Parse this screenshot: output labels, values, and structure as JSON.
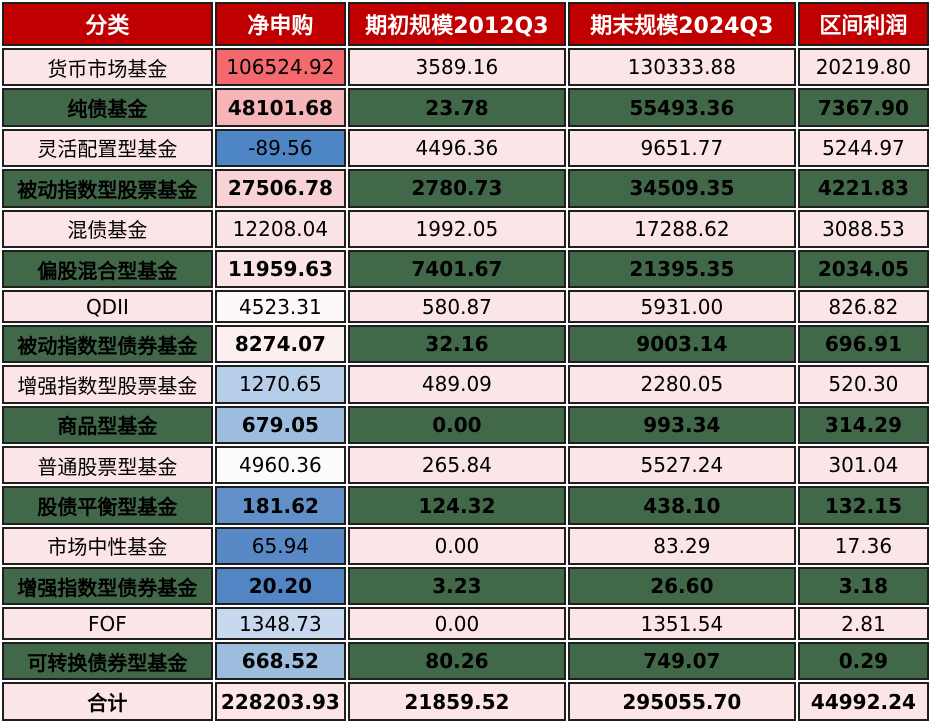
{
  "table": {
    "columns": [
      "分类",
      "净申购",
      "期初规模2012Q3",
      "期末规模2024Q3",
      "区间利润"
    ],
    "rows": [
      {
        "category": "货币市场基金",
        "net_subscription": "106524.92",
        "start_scale": "3589.16",
        "end_scale": "130333.88",
        "profit": "20219.80",
        "theme": "pink",
        "net_bg": "#F4696E"
      },
      {
        "category": "纯债基金",
        "net_subscription": "48101.68",
        "start_scale": "23.78",
        "end_scale": "55493.36",
        "profit": "7367.90",
        "theme": "green",
        "net_bg": "#F5B5B9"
      },
      {
        "category": "灵活配置型基金",
        "net_subscription": "-89.56",
        "start_scale": "4496.36",
        "end_scale": "9651.77",
        "profit": "5244.97",
        "theme": "pink",
        "net_bg": "#4E85C5"
      },
      {
        "category": "被动指数型股票基金",
        "net_subscription": "27506.78",
        "start_scale": "2780.73",
        "end_scale": "34509.35",
        "profit": "4221.83",
        "theme": "green",
        "net_bg": "#F8D2D4"
      },
      {
        "category": "混债基金",
        "net_subscription": "12208.04",
        "start_scale": "1992.05",
        "end_scale": "17288.62",
        "profit": "3088.53",
        "theme": "pink",
        "net_bg": "#FAE4E5"
      },
      {
        "category": "偏股混合型基金",
        "net_subscription": "11959.63",
        "start_scale": "7401.67",
        "end_scale": "21395.35",
        "profit": "2034.05",
        "theme": "green",
        "net_bg": "#FAE4E5"
      },
      {
        "category": "QDII",
        "net_subscription": "4523.31",
        "start_scale": "580.87",
        "end_scale": "5931.00",
        "profit": "826.82",
        "theme": "pink",
        "net_bg": "#FDF9F9"
      },
      {
        "category": "被动指数型债券基金",
        "net_subscription": "8274.07",
        "start_scale": "32.16",
        "end_scale": "9003.14",
        "profit": "696.91",
        "theme": "green",
        "net_bg": "#FCEFEF"
      },
      {
        "category": "增强指数型股票基金",
        "net_subscription": "1270.65",
        "start_scale": "489.09",
        "end_scale": "2280.05",
        "profit": "520.30",
        "theme": "pink",
        "net_bg": "#B6CEE8"
      },
      {
        "category": "商品型基金",
        "net_subscription": "679.05",
        "start_scale": "0.00",
        "end_scale": "993.34",
        "profit": "314.29",
        "theme": "green",
        "net_bg": "#9DBDDF"
      },
      {
        "category": "普通股票型基金",
        "net_subscription": "4960.36",
        "start_scale": "265.84",
        "end_scale": "5527.24",
        "profit": "301.04",
        "theme": "pink",
        "net_bg": "#FDFBFB"
      },
      {
        "category": "股债平衡型基金",
        "net_subscription": "181.62",
        "start_scale": "124.32",
        "end_scale": "438.10",
        "profit": "132.15",
        "theme": "green",
        "net_bg": "#6190C9"
      },
      {
        "category": "市场中性基金",
        "net_subscription": "65.94",
        "start_scale": "0.00",
        "end_scale": "83.29",
        "profit": "17.36",
        "theme": "pink",
        "net_bg": "#5889C6"
      },
      {
        "category": "增强指数型债券基金",
        "net_subscription": "20.20",
        "start_scale": "3.23",
        "end_scale": "26.60",
        "profit": "3.18",
        "theme": "green",
        "net_bg": "#5285C4"
      },
      {
        "category": "FOF",
        "net_subscription": "1348.73",
        "start_scale": "0.00",
        "end_scale": "1351.54",
        "profit": "2.81",
        "theme": "pink",
        "net_bg": "#C8D9EF"
      },
      {
        "category": "可转换债券型基金",
        "net_subscription": "668.52",
        "start_scale": "80.26",
        "end_scale": "749.07",
        "profit": "0.29",
        "theme": "green",
        "net_bg": "#9DBDDF"
      },
      {
        "category": "合计",
        "net_subscription": "228203.93",
        "start_scale": "21859.52",
        "end_scale": "295055.70",
        "profit": "44992.24",
        "theme": "total",
        "net_bg": "#FBE5E6"
      }
    ]
  },
  "colors": {
    "header_bg": "#C00000",
    "header_text": "#FFFFFF",
    "row_pink_bg": "#FBE5E6",
    "row_green_bg": "#42684A",
    "border": "#1F1F1F",
    "heatmap_max_red": "#F4696E",
    "heatmap_mid_white": "#FDFBFB",
    "heatmap_min_blue": "#4E85C5"
  },
  "chart_data": {
    "type": "table",
    "columns": [
      "分类",
      "净申购",
      "期初规模2012Q3",
      "期末规模2024Q3",
      "区间利润"
    ],
    "rows": [
      [
        "货币市场基金",
        106524.92,
        3589.16,
        130333.88,
        20219.8
      ],
      [
        "纯债基金",
        48101.68,
        23.78,
        55493.36,
        7367.9
      ],
      [
        "灵活配置型基金",
        -89.56,
        4496.36,
        9651.77,
        5244.97
      ],
      [
        "被动指数型股票基金",
        27506.78,
        2780.73,
        34509.35,
        4221.83
      ],
      [
        "混债基金",
        12208.04,
        1992.05,
        17288.62,
        3088.53
      ],
      [
        "偏股混合型基金",
        11959.63,
        7401.67,
        21395.35,
        2034.05
      ],
      [
        "QDII",
        4523.31,
        580.87,
        5931.0,
        826.82
      ],
      [
        "被动指数型债券基金",
        8274.07,
        32.16,
        9003.14,
        696.91
      ],
      [
        "增强指数型股票基金",
        1270.65,
        489.09,
        2280.05,
        520.3
      ],
      [
        "商品型基金",
        679.05,
        0.0,
        993.34,
        314.29
      ],
      [
        "普通股票型基金",
        4960.36,
        265.84,
        5527.24,
        301.04
      ],
      [
        "股债平衡型基金",
        181.62,
        124.32,
        438.1,
        132.15
      ],
      [
        "市场中性基金",
        65.94,
        0.0,
        83.29,
        17.36
      ],
      [
        "增强指数型债券基金",
        20.2,
        3.23,
        26.6,
        3.18
      ],
      [
        "FOF",
        1348.73,
        0.0,
        1351.54,
        2.81
      ],
      [
        "可转换债券型基金",
        668.52,
        80.26,
        749.07,
        0.29
      ],
      [
        "合计",
        228203.93,
        21859.52,
        295055.7,
        44992.24
      ]
    ],
    "notes": "净申购 column uses a red-white-blue heatmap fill; rows alternate light-pink and dark-green backgrounds; last row is the total."
  }
}
